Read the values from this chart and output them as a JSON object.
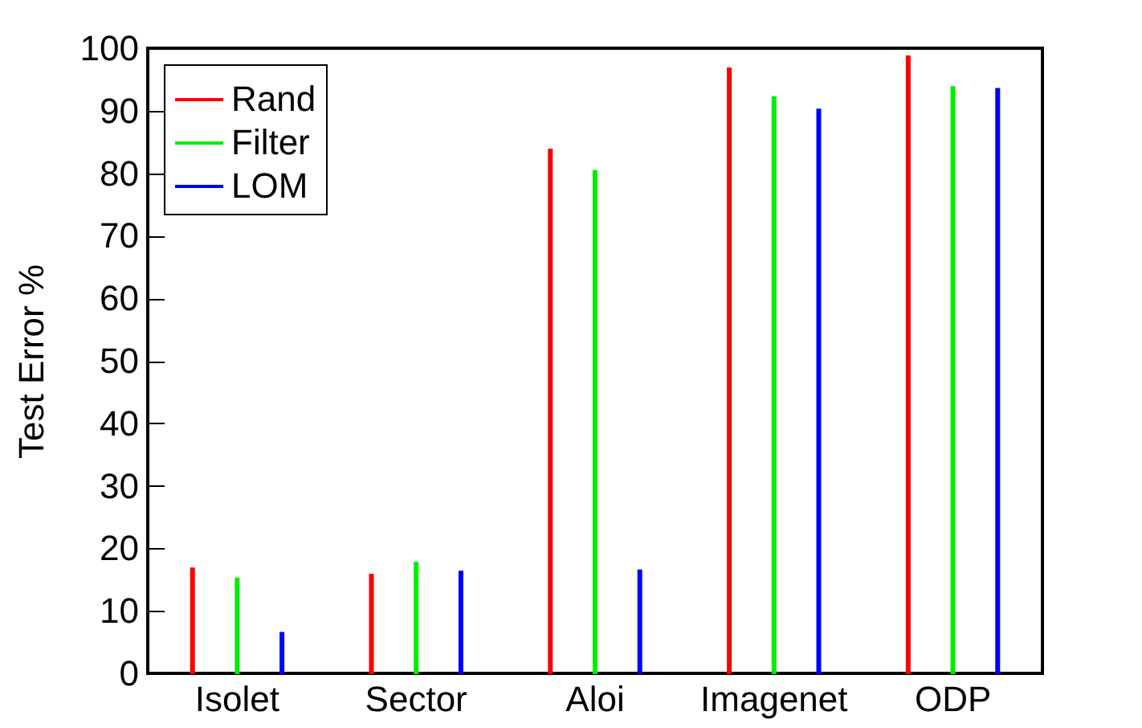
{
  "chart_data": {
    "type": "bar",
    "ylabel": "Test Error %",
    "categories": [
      "Isolet",
      "Sector",
      "Aloi",
      "Imagenet",
      "ODP"
    ],
    "series": [
      {
        "name": "Rand",
        "color": "#ff0000",
        "values": [
          16.8,
          15.8,
          83.8,
          96.8,
          98.7
        ]
      },
      {
        "name": "Filter",
        "color": "#00ee00",
        "values": [
          15.2,
          17.7,
          80.4,
          92.2,
          93.8
        ]
      },
      {
        "name": "LOM",
        "color": "#0000ff",
        "values": [
          6.5,
          16.3,
          16.5,
          90.2,
          93.5
        ]
      }
    ],
    "ylim": [
      0,
      100
    ],
    "yticks": [
      0,
      10,
      20,
      30,
      40,
      50,
      60,
      70,
      80,
      90,
      100
    ],
    "legend": "top left",
    "grid": false
  }
}
